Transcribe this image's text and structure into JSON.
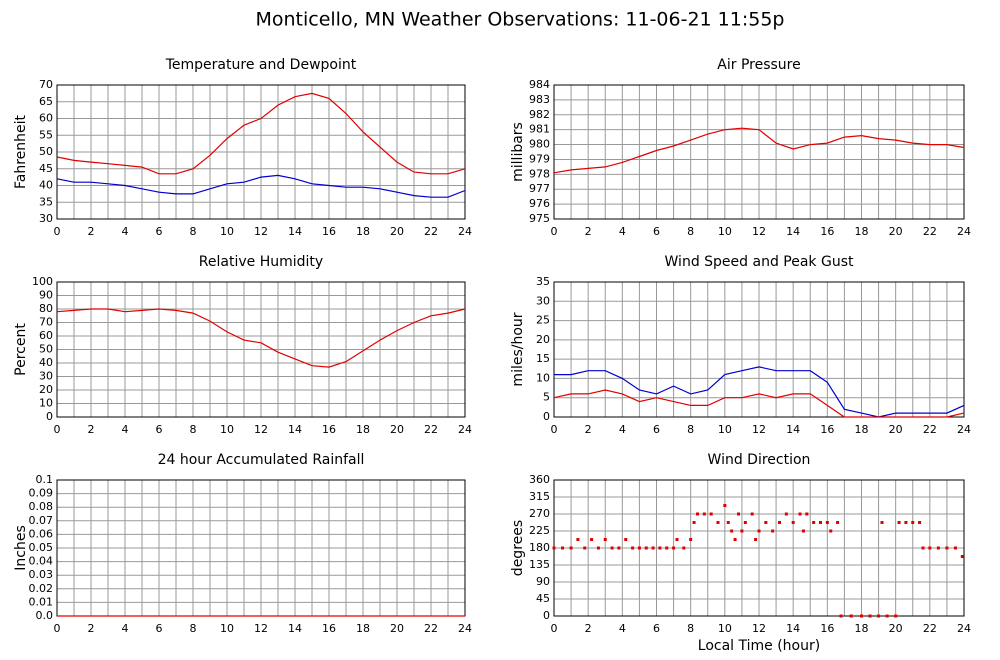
{
  "title": "Monticello, MN Weather Observations: 11-06-21 11:55p",
  "chart_data": [
    {
      "type": "line",
      "title": "Temperature and Dewpoint",
      "ylabel": "Fahrenheit",
      "xlim": [
        0,
        24
      ],
      "xticks": [
        0,
        2,
        4,
        6,
        8,
        10,
        12,
        14,
        16,
        18,
        20,
        22,
        24
      ],
      "xminor": [
        1,
        3,
        5,
        7,
        9,
        11,
        13,
        15,
        17,
        19,
        21,
        23
      ],
      "ylim": [
        30,
        70
      ],
      "yticks": [
        30,
        35,
        40,
        45,
        50,
        55,
        60,
        65,
        70
      ],
      "grid": true,
      "x": [
        0,
        1,
        2,
        3,
        4,
        5,
        6,
        7,
        8,
        9,
        10,
        11,
        12,
        13,
        14,
        15,
        16,
        17,
        18,
        19,
        20,
        21,
        22,
        23,
        24
      ],
      "series": [
        {
          "color": "#e00000",
          "values": [
            48.5,
            47.5,
            47,
            46.5,
            46,
            45.5,
            43.5,
            43.5,
            45,
            49,
            54,
            58,
            60,
            64,
            66.5,
            67.5,
            66,
            61.5,
            56,
            51.5,
            47,
            44,
            43.5,
            43.5,
            45
          ]
        },
        {
          "color": "#0000d0",
          "values": [
            42,
            41,
            41,
            40.5,
            40,
            39,
            38,
            37.5,
            37.5,
            39,
            40.5,
            41,
            42.5,
            43,
            42,
            40.5,
            40,
            39.5,
            39.5,
            39,
            38,
            37,
            36.5,
            36.5,
            38.5
          ]
        }
      ]
    },
    {
      "type": "line",
      "title": "Air Pressure",
      "ylabel": "millibars",
      "xlim": [
        0,
        24
      ],
      "xticks": [
        0,
        2,
        4,
        6,
        8,
        10,
        12,
        14,
        16,
        18,
        20,
        22,
        24
      ],
      "xminor": [
        1,
        3,
        5,
        7,
        9,
        11,
        13,
        15,
        17,
        19,
        21,
        23
      ],
      "ylim": [
        975,
        984
      ],
      "yticks": [
        975,
        976,
        977,
        978,
        979,
        980,
        981,
        982,
        983,
        984
      ],
      "grid": true,
      "x": [
        0,
        1,
        2,
        3,
        4,
        5,
        6,
        7,
        8,
        9,
        10,
        11,
        12,
        13,
        14,
        15,
        16,
        17,
        18,
        19,
        20,
        21,
        22,
        23,
        24
      ],
      "series": [
        {
          "color": "#e00000",
          "values": [
            978.1,
            978.3,
            978.4,
            978.5,
            978.8,
            979.2,
            979.6,
            979.9,
            980.3,
            980.7,
            981.0,
            981.1,
            981.0,
            980.1,
            979.7,
            980.0,
            980.1,
            980.5,
            980.6,
            980.4,
            980.3,
            980.1,
            980.0,
            980.0,
            979.8
          ]
        }
      ]
    },
    {
      "type": "line",
      "title": "Relative Humidity",
      "ylabel": "Percent",
      "xlim": [
        0,
        24
      ],
      "xticks": [
        0,
        2,
        4,
        6,
        8,
        10,
        12,
        14,
        16,
        18,
        20,
        22,
        24
      ],
      "xminor": [
        1,
        3,
        5,
        7,
        9,
        11,
        13,
        15,
        17,
        19,
        21,
        23
      ],
      "ylim": [
        0,
        100
      ],
      "yticks": [
        0,
        10,
        20,
        30,
        40,
        50,
        60,
        70,
        80,
        90,
        100
      ],
      "grid": true,
      "x": [
        0,
        1,
        2,
        3,
        4,
        5,
        6,
        7,
        8,
        9,
        10,
        11,
        12,
        13,
        14,
        15,
        16,
        17,
        18,
        19,
        20,
        21,
        22,
        23,
        24
      ],
      "series": [
        {
          "color": "#e00000",
          "values": [
            78,
            79,
            80,
            80,
            78,
            79,
            80,
            79,
            77,
            71,
            63,
            57,
            55,
            48,
            43,
            38,
            37,
            41,
            49,
            57,
            64,
            70,
            75,
            77,
            80
          ]
        }
      ]
    },
    {
      "type": "line",
      "title": "Wind Speed and Peak Gust",
      "ylabel": "miles/hour",
      "xlim": [
        0,
        24
      ],
      "xticks": [
        0,
        2,
        4,
        6,
        8,
        10,
        12,
        14,
        16,
        18,
        20,
        22,
        24
      ],
      "xminor": [
        1,
        3,
        5,
        7,
        9,
        11,
        13,
        15,
        17,
        19,
        21,
        23
      ],
      "ylim": [
        0,
        35
      ],
      "yticks": [
        0,
        5,
        10,
        15,
        20,
        25,
        30,
        35
      ],
      "grid": true,
      "x": [
        0,
        1,
        2,
        3,
        4,
        5,
        6,
        7,
        8,
        9,
        10,
        11,
        12,
        13,
        14,
        15,
        16,
        17,
        18,
        19,
        20,
        21,
        22,
        23,
        24
      ],
      "series": [
        {
          "color": "#0000d0",
          "values": [
            11,
            11,
            12,
            12,
            10,
            7,
            6,
            8,
            6,
            7,
            11,
            12,
            13,
            12,
            12,
            12,
            9,
            2,
            1,
            0,
            1,
            1,
            1,
            1,
            3
          ]
        },
        {
          "color": "#e00000",
          "values": [
            5,
            6,
            6,
            7,
            6,
            4,
            5,
            4,
            3,
            3,
            5,
            5,
            6,
            5,
            6,
            6,
            3,
            0,
            0,
            0,
            0,
            0,
            0,
            0,
            1
          ]
        }
      ]
    },
    {
      "type": "line",
      "title": "24 hour Accumulated Rainfall",
      "ylabel": "Inches",
      "xlim": [
        0,
        24
      ],
      "xticks": [
        0,
        2,
        4,
        6,
        8,
        10,
        12,
        14,
        16,
        18,
        20,
        22,
        24
      ],
      "xminor": [
        1,
        3,
        5,
        7,
        9,
        11,
        13,
        15,
        17,
        19,
        21,
        23
      ],
      "ylim": [
        0,
        0.1
      ],
      "yticks": [
        {
          "value": 0,
          "label": "0.0"
        },
        0.01,
        0.02,
        0.03,
        0.04,
        0.05,
        0.06,
        0.07,
        0.08,
        0.09,
        0.1
      ],
      "grid": true,
      "x": [
        0,
        24
      ],
      "series": [
        {
          "color": "#e00000",
          "values": [
            0,
            0
          ]
        }
      ]
    },
    {
      "type": "scatter",
      "title": "Wind Direction",
      "ylabel": "degrees",
      "xlabel": "Local Time (hour)",
      "xlim": [
        0,
        24
      ],
      "xticks": [
        0,
        2,
        4,
        6,
        8,
        10,
        12,
        14,
        16,
        18,
        20,
        22,
        24
      ],
      "xminor": [
        1,
        3,
        5,
        7,
        9,
        11,
        13,
        15,
        17,
        19,
        21,
        23
      ],
      "ylim": [
        0,
        360
      ],
      "yticks": [
        0,
        45,
        90,
        135,
        180,
        225,
        270,
        315,
        360
      ],
      "grid": true,
      "x": [
        0,
        0.5,
        1,
        1.4,
        1.8,
        2.2,
        2.6,
        3,
        3.4,
        3.8,
        4.2,
        4.6,
        5,
        5.4,
        5.8,
        6.2,
        6.6,
        7,
        7.2,
        7.6,
        8,
        8.2,
        8.4,
        8.8,
        9.2,
        9.6,
        10,
        10.2,
        10.4,
        10.6,
        10.8,
        11,
        11.2,
        11.6,
        11.8,
        12,
        12.4,
        12.8,
        13.2,
        13.6,
        14,
        14.4,
        14.6,
        14.8,
        15.2,
        15.6,
        16,
        16.2,
        16.6,
        16.8,
        17.4,
        18,
        18.5,
        19,
        19.2,
        19.5,
        20,
        20.2,
        20.6,
        21,
        21.4,
        21.6,
        22,
        22.5,
        23,
        23.5,
        23.9
      ],
      "series": [
        {
          "color": "#e00000",
          "values": [
            180,
            180,
            180,
            202.5,
            180,
            202.5,
            180,
            202.5,
            180,
            180,
            202.5,
            180,
            180,
            180,
            180,
            180,
            180,
            180,
            202.5,
            180,
            202.5,
            247.5,
            270,
            270,
            270,
            247.5,
            292.5,
            247.5,
            225,
            202.5,
            270,
            225,
            247.5,
            270,
            202.5,
            225,
            247.5,
            225,
            247.5,
            270,
            247.5,
            270,
            225,
            270,
            247.5,
            247.5,
            247.5,
            225,
            247.5,
            0,
            0,
            0,
            0,
            0,
            247.5,
            0,
            0,
            247.5,
            247.5,
            247.5,
            247.5,
            180,
            180,
            180,
            180,
            180,
            157.5
          ]
        }
      ]
    }
  ]
}
